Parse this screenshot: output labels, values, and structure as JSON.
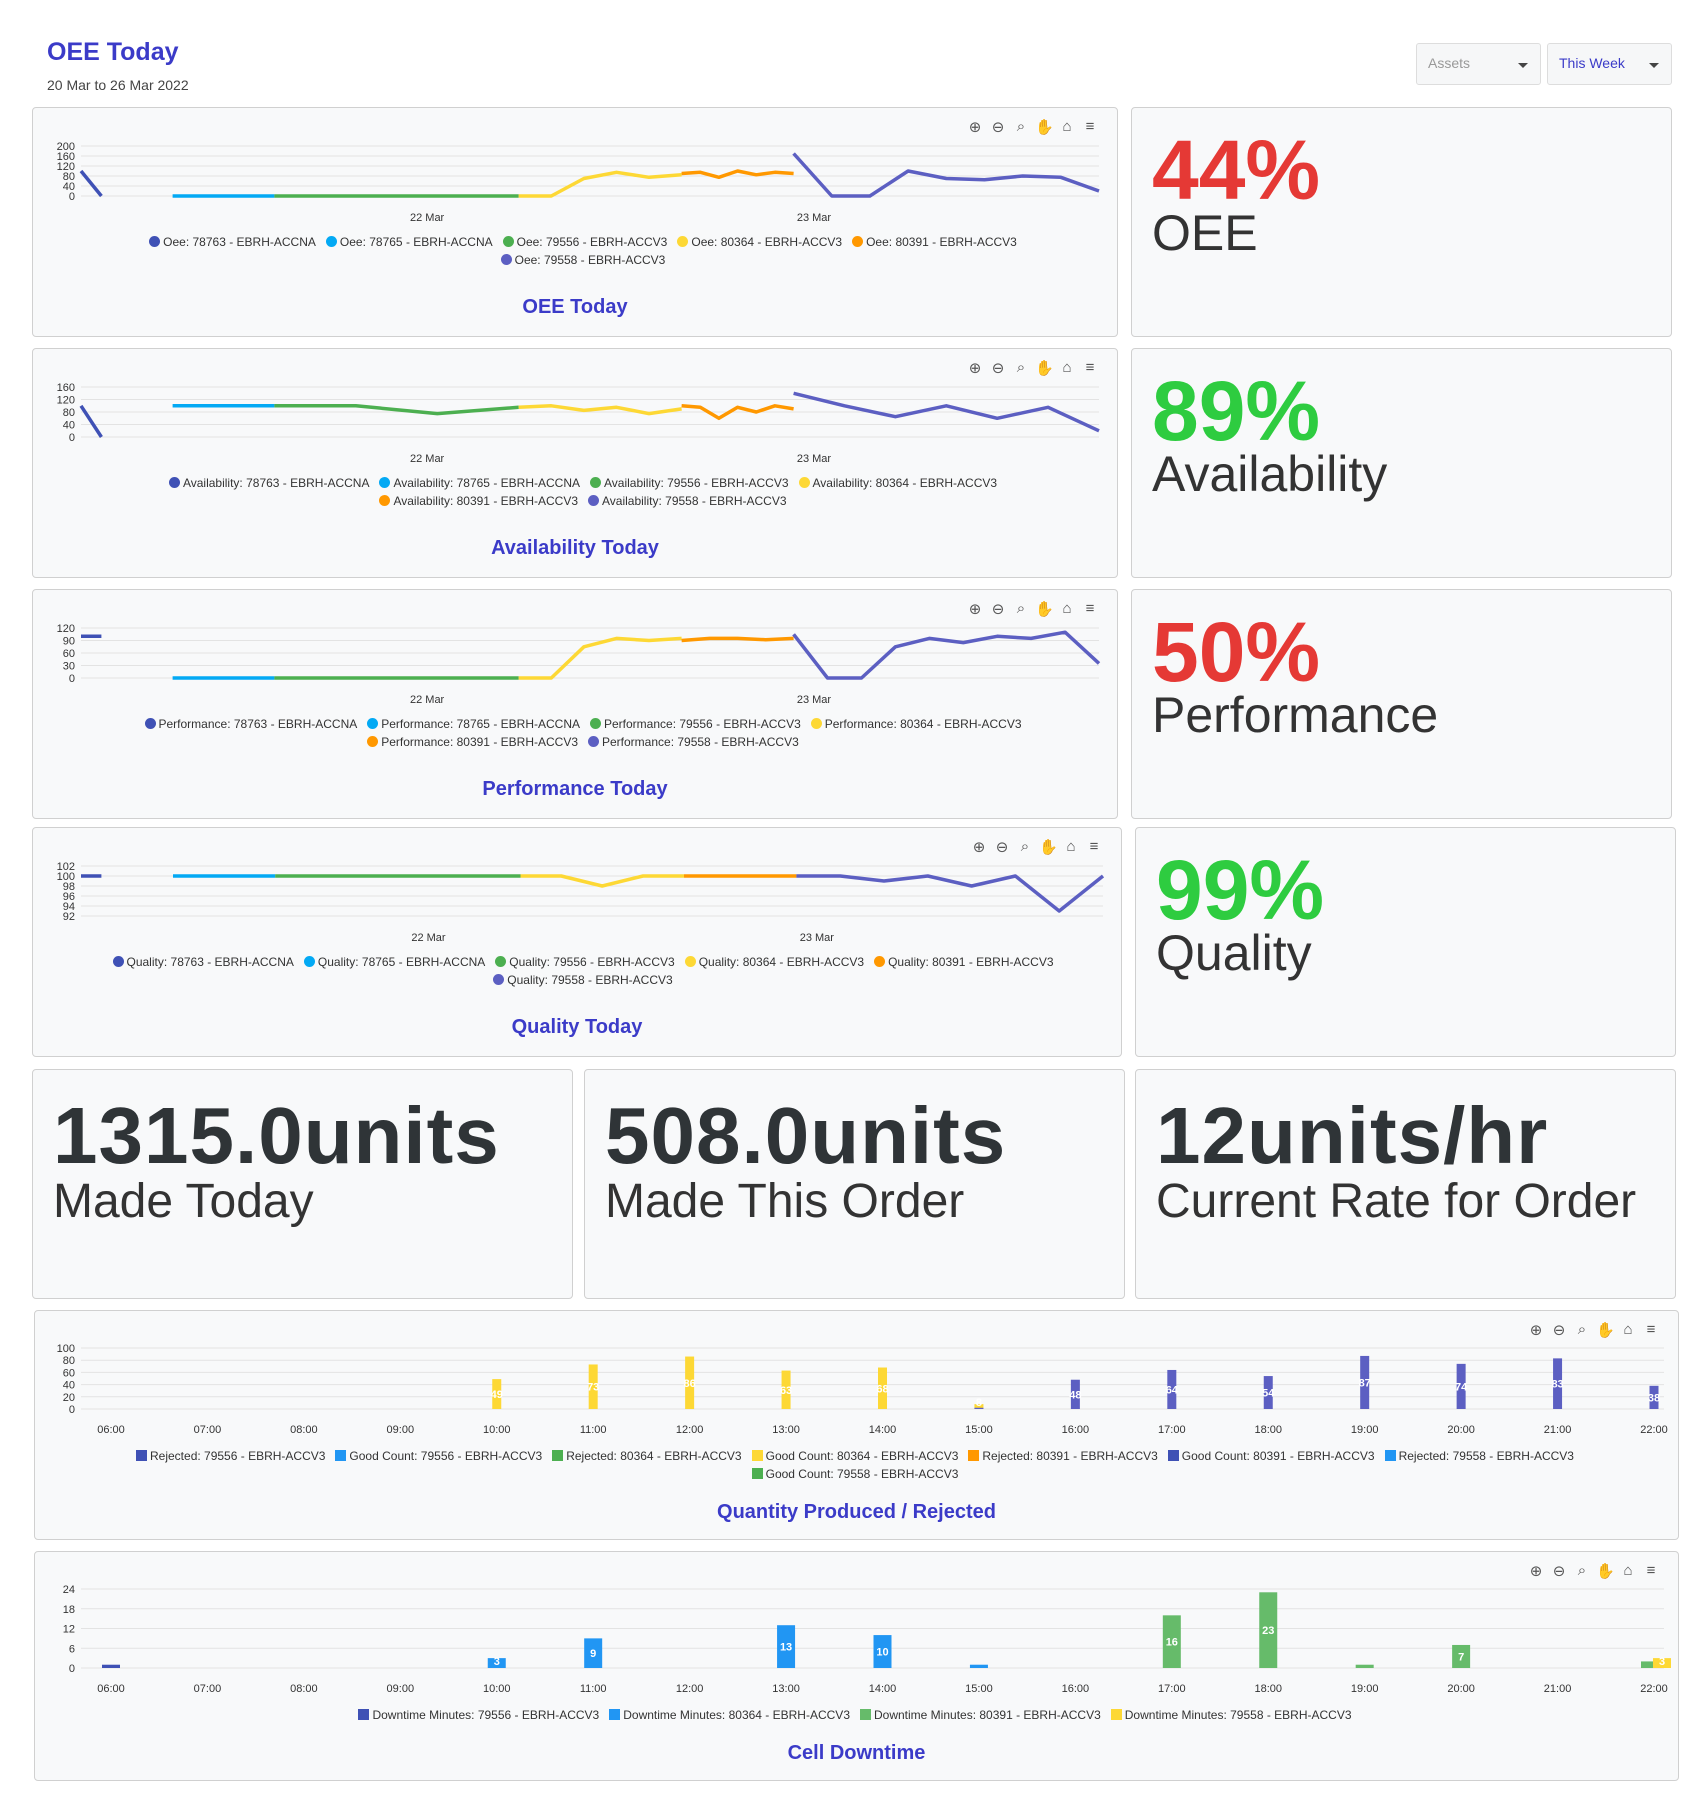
{
  "header": {
    "title": "OEE Today",
    "date_range": "20 Mar to 26 Mar 2022",
    "assets_label": "Assets",
    "period_label": "This Week"
  },
  "toolbar_icons": [
    "zoom-in-icon",
    "zoom-out-icon",
    "zoom-select-icon",
    "pan-icon",
    "reset-home-icon",
    "menu-icon"
  ],
  "line_charts": [
    {
      "id": "oee",
      "caption": "OEE Today",
      "y_ticks": [
        "200",
        "160",
        "120",
        "80",
        "40",
        "0"
      ],
      "x_ticks": [
        "22 Mar",
        "23 Mar"
      ],
      "legend": [
        {
          "label": "Oee: 78763 - EBRH-ACCNA",
          "color": "#3f51b5"
        },
        {
          "label": "Oee: 78765 - EBRH-ACCNA",
          "color": "#03a9f4"
        },
        {
          "label": "Oee: 79556 - EBRH-ACCV3",
          "color": "#4caf50"
        },
        {
          "label": "Oee: 80364 - EBRH-ACCV3",
          "color": "#fdd835"
        },
        {
          "label": "Oee: 80391 - EBRH-ACCV3",
          "color": "#ff9800"
        },
        {
          "label": "Oee: 79558 - EBRH-ACCV3",
          "color": "#5c5fc2"
        }
      ]
    },
    {
      "id": "availability",
      "caption": "Availability Today",
      "y_ticks": [
        "160",
        "120",
        "80",
        "40",
        "0"
      ],
      "x_ticks": [
        "22 Mar",
        "23 Mar"
      ],
      "legend": [
        {
          "label": "Availability: 78763 - EBRH-ACCNA",
          "color": "#3f51b5"
        },
        {
          "label": "Availability: 78765 - EBRH-ACCNA",
          "color": "#03a9f4"
        },
        {
          "label": "Availability: 79556 - EBRH-ACCV3",
          "color": "#4caf50"
        },
        {
          "label": "Availability: 80364 - EBRH-ACCV3",
          "color": "#fdd835"
        },
        {
          "label": "Availability: 80391 - EBRH-ACCV3",
          "color": "#ff9800"
        },
        {
          "label": "Availability: 79558 - EBRH-ACCV3",
          "color": "#5c5fc2"
        }
      ]
    },
    {
      "id": "performance",
      "caption": "Performance Today",
      "y_ticks": [
        "120",
        "90",
        "60",
        "30",
        "0"
      ],
      "x_ticks": [
        "22 Mar",
        "23 Mar"
      ],
      "legend": [
        {
          "label": "Performance: 78763 - EBRH-ACCNA",
          "color": "#3f51b5"
        },
        {
          "label": "Performance: 78765 - EBRH-ACCNA",
          "color": "#03a9f4"
        },
        {
          "label": "Performance: 79556 - EBRH-ACCV3",
          "color": "#4caf50"
        },
        {
          "label": "Performance: 80364 - EBRH-ACCV3",
          "color": "#fdd835"
        },
        {
          "label": "Performance: 80391 - EBRH-ACCV3",
          "color": "#ff9800"
        },
        {
          "label": "Performance: 79558 - EBRH-ACCV3",
          "color": "#5c5fc2"
        }
      ]
    },
    {
      "id": "quality",
      "caption": "Quality Today",
      "y_ticks": [
        "102",
        "100",
        "98",
        "96",
        "94",
        "92"
      ],
      "x_ticks": [
        "22 Mar",
        "23 Mar"
      ],
      "legend": [
        {
          "label": "Quality: 78763 - EBRH-ACCNA",
          "color": "#3f51b5"
        },
        {
          "label": "Quality: 78765 - EBRH-ACCNA",
          "color": "#03a9f4"
        },
        {
          "label": "Quality: 79556 - EBRH-ACCV3",
          "color": "#4caf50"
        },
        {
          "label": "Quality: 80364 - EBRH-ACCV3",
          "color": "#fdd835"
        },
        {
          "label": "Quality: 80391 - EBRH-ACCV3",
          "color": "#ff9800"
        },
        {
          "label": "Quality: 79558 - EBRH-ACCV3",
          "color": "#5c5fc2"
        }
      ]
    }
  ],
  "kpis": [
    {
      "value": "44%",
      "label": "OEE",
      "color": "#e53935"
    },
    {
      "value": "89%",
      "label": "Availability",
      "color": "#2ecc40"
    },
    {
      "value": "50%",
      "label": "Performance",
      "color": "#e53935"
    },
    {
      "value": "99%",
      "label": "Quality",
      "color": "#2ecc40"
    }
  ],
  "big_stats": [
    {
      "value": "1315.0units",
      "label": "Made Today"
    },
    {
      "value": "508.0units",
      "label": "Made This Order"
    },
    {
      "value": "12units/hr",
      "label": "Current Rate for Order"
    }
  ],
  "bar_charts": [
    {
      "id": "quantity",
      "caption": "Quantity Produced / Rejected",
      "y_ticks": [
        "100",
        "80",
        "60",
        "40",
        "20",
        "0"
      ],
      "x_ticks": [
        "06:00",
        "07:00",
        "08:00",
        "09:00",
        "10:00",
        "11:00",
        "12:00",
        "13:00",
        "14:00",
        "15:00",
        "16:00",
        "17:00",
        "18:00",
        "19:00",
        "20:00",
        "21:00",
        "22:00"
      ],
      "legend": [
        {
          "label": "Rejected: 79556 - EBRH-ACCV3",
          "color": "#3f51b5"
        },
        {
          "label": "Good Count: 79556 - EBRH-ACCV3",
          "color": "#2196f3"
        },
        {
          "label": "Rejected: 80364 - EBRH-ACCV3",
          "color": "#4caf50"
        },
        {
          "label": "Good Count: 80364 - EBRH-ACCV3",
          "color": "#fdd835"
        },
        {
          "label": "Rejected: 80391 - EBRH-ACCV3",
          "color": "#ff9800"
        },
        {
          "label": "Good Count: 80391 - EBRH-ACCV3",
          "color": "#3f51b5"
        },
        {
          "label": "Rejected: 79558 - EBRH-ACCV3",
          "color": "#2196f3"
        },
        {
          "label": "Good Count: 79558 - EBRH-ACCV3",
          "color": "#4caf50"
        }
      ]
    },
    {
      "id": "downtime",
      "caption": "Cell Downtime",
      "y_ticks": [
        "24",
        "18",
        "12",
        "6",
        "0"
      ],
      "x_ticks": [
        "06:00",
        "07:00",
        "08:00",
        "09:00",
        "10:00",
        "11:00",
        "12:00",
        "13:00",
        "14:00",
        "15:00",
        "16:00",
        "17:00",
        "18:00",
        "19:00",
        "20:00",
        "21:00",
        "22:00"
      ],
      "legend": [
        {
          "label": "Downtime Minutes: 79556 - EBRH-ACCV3",
          "color": "#3f51b5"
        },
        {
          "label": "Downtime Minutes: 80364 - EBRH-ACCV3",
          "color": "#2196f3"
        },
        {
          "label": "Downtime Minutes: 80391 - EBRH-ACCV3",
          "color": "#66bb6a"
        },
        {
          "label": "Downtime Minutes: 79558 - EBRH-ACCV3",
          "color": "#fdd835"
        }
      ]
    }
  ],
  "chart_data": [
    {
      "type": "line",
      "title": "OEE Today",
      "ylim": [
        0,
        200
      ],
      "series": [
        {
          "name": "Oee: 78763 - EBRH-ACCNA",
          "values": [
            100,
            0
          ]
        },
        {
          "name": "Oee: 78765 - EBRH-ACCNA",
          "values": [
            0,
            0
          ]
        },
        {
          "name": "Oee: 79556 - EBRH-ACCV3",
          "values": [
            0,
            0
          ]
        },
        {
          "name": "Oee: 80364 - EBRH-ACCV3",
          "values": [
            0,
            0,
            70,
            95,
            75,
            85
          ]
        },
        {
          "name": "Oee: 80391 - EBRH-ACCV3",
          "values": [
            90,
            95,
            75,
            100,
            85,
            95,
            90
          ]
        },
        {
          "name": "Oee: 79558 - EBRH-ACCV3",
          "values": [
            170,
            0,
            0,
            100,
            70,
            65,
            80,
            75,
            20
          ]
        }
      ]
    },
    {
      "type": "line",
      "title": "Availability Today",
      "ylim": [
        0,
        160
      ],
      "series": [
        {
          "name": "Availability: 78763 - EBRH-ACCNA",
          "values": [
            100,
            0
          ]
        },
        {
          "name": "Availability: 78765 - EBRH-ACCNA",
          "values": [
            100,
            100
          ]
        },
        {
          "name": "Availability: 79556 - EBRH-ACCV3",
          "values": [
            100,
            100,
            75,
            95
          ]
        },
        {
          "name": "Availability: 80364 - EBRH-ACCV3",
          "values": [
            95,
            100,
            85,
            95,
            75,
            90
          ]
        },
        {
          "name": "Availability: 80391 - EBRH-ACCV3",
          "values": [
            100,
            95,
            60,
            95,
            80,
            100,
            90
          ]
        },
        {
          "name": "Availability: 79558 - EBRH-ACCV3",
          "values": [
            140,
            100,
            65,
            100,
            60,
            95,
            20
          ]
        }
      ]
    },
    {
      "type": "line",
      "title": "Performance Today",
      "ylim": [
        0,
        120
      ],
      "series": [
        {
          "name": "Performance: 78763 - EBRH-ACCNA",
          "values": [
            100,
            100
          ]
        },
        {
          "name": "Performance: 78765 - EBRH-ACCNA",
          "values": [
            0,
            0
          ]
        },
        {
          "name": "Performance: 79556 - EBRH-ACCV3",
          "values": [
            0,
            0
          ]
        },
        {
          "name": "Performance: 80364 - EBRH-ACCV3",
          "values": [
            0,
            0,
            75,
            95,
            90,
            95
          ]
        },
        {
          "name": "Performance: 80391 - EBRH-ACCV3",
          "values": [
            90,
            95,
            95,
            92,
            95
          ]
        },
        {
          "name": "Performance: 79558 - EBRH-ACCV3",
          "values": [
            105,
            0,
            0,
            75,
            95,
            85,
            100,
            95,
            110,
            35
          ]
        }
      ]
    },
    {
      "type": "line",
      "title": "Quality Today",
      "ylim": [
        92,
        102
      ],
      "series": [
        {
          "name": "Quality: 78763 - EBRH-ACCNA",
          "values": [
            100,
            100
          ]
        },
        {
          "name": "Quality: 78765 - EBRH-ACCNA",
          "values": [
            100,
            100
          ]
        },
        {
          "name": "Quality: 79556 - EBRH-ACCV3",
          "values": [
            100,
            100
          ]
        },
        {
          "name": "Quality: 80364 - EBRH-ACCV3",
          "values": [
            100,
            100,
            98,
            100,
            100
          ]
        },
        {
          "name": "Quality: 80391 - EBRH-ACCV3",
          "values": [
            100,
            100
          ]
        },
        {
          "name": "Quality: 79558 - EBRH-ACCV3",
          "values": [
            100,
            100,
            99,
            100,
            98,
            100,
            93,
            100
          ]
        }
      ]
    },
    {
      "type": "bar",
      "title": "Quantity Produced / Rejected",
      "ylim": [
        0,
        100
      ],
      "categories": [
        "06:00",
        "07:00",
        "08:00",
        "09:00",
        "10:00",
        "11:00",
        "12:00",
        "13:00",
        "14:00",
        "15:00",
        "16:00",
        "17:00",
        "18:00",
        "19:00",
        "20:00",
        "21:00",
        "22:00"
      ],
      "series": [
        {
          "name": "Good Count: 80364 - EBRH-ACCV3",
          "values": [
            0,
            0,
            0,
            0,
            49,
            73,
            86,
            63,
            68,
            8,
            0,
            0,
            0,
            0,
            0,
            0,
            0
          ]
        },
        {
          "name": "Good Count: 80391 - EBRH-ACCV3",
          "values": [
            0,
            0,
            0,
            0,
            0,
            0,
            0,
            0,
            0,
            2,
            48,
            64,
            54,
            87,
            74,
            83,
            38
          ]
        }
      ]
    },
    {
      "type": "bar",
      "title": "Cell Downtime",
      "ylim": [
        0,
        24
      ],
      "categories": [
        "06:00",
        "07:00",
        "08:00",
        "09:00",
        "10:00",
        "11:00",
        "12:00",
        "13:00",
        "14:00",
        "15:00",
        "16:00",
        "17:00",
        "18:00",
        "19:00",
        "20:00",
        "21:00",
        "22:00"
      ],
      "series": [
        {
          "name": "Downtime Minutes: 79556 - EBRH-ACCV3",
          "values": [
            1,
            0,
            0,
            0,
            0,
            0,
            0,
            0,
            0,
            0,
            0,
            0,
            0,
            0,
            0,
            0,
            0
          ]
        },
        {
          "name": "Downtime Minutes: 80364 - EBRH-ACCV3",
          "values": [
            0,
            0,
            0,
            0,
            3,
            9,
            0,
            13,
            10,
            1,
            0,
            0,
            0,
            0,
            0,
            0,
            0
          ]
        },
        {
          "name": "Downtime Minutes: 80391 - EBRH-ACCV3",
          "values": [
            0,
            0,
            0,
            0,
            0,
            0,
            0,
            0,
            0,
            0,
            0,
            16,
            23,
            1,
            7,
            0,
            2
          ]
        },
        {
          "name": "Downtime Minutes: 79558 - EBRH-ACCV3",
          "values": [
            0,
            0,
            0,
            0,
            0,
            0,
            0,
            0,
            0,
            0,
            0,
            0,
            0,
            0,
            0,
            0,
            3
          ]
        }
      ]
    }
  ]
}
